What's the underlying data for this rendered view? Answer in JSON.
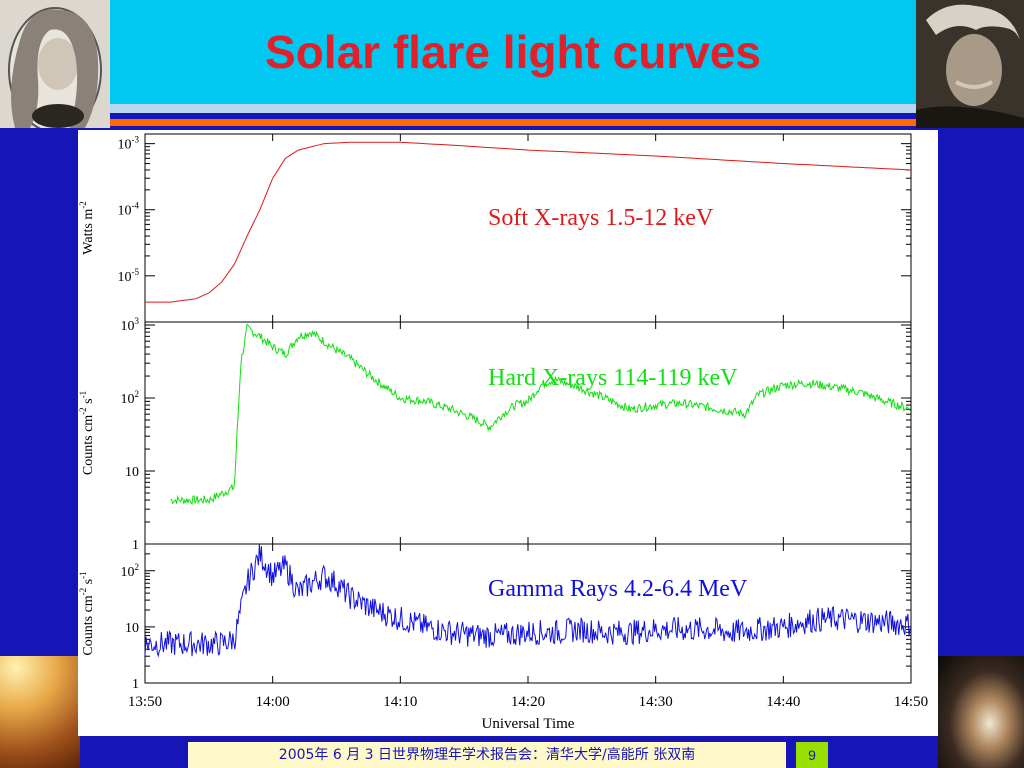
{
  "slide": {
    "title": "Solar flare light curves",
    "footer": "2005年 6 月 3 日世界物理年学术报告会：清华大学/高能所 张双南",
    "page_number": "9"
  },
  "colors": {
    "soft": "#e01818",
    "hard": "#10e010",
    "gamma": "#1010e0",
    "header_bg": "#00c8f0",
    "slide_bg": "#1515b8",
    "title": "#e0202a"
  },
  "chart_data": {
    "type": "line",
    "xlabel": "Universal Time",
    "x_ticks": [
      "13:50",
      "14:00",
      "14:10",
      "14:20",
      "14:30",
      "14:40",
      "14:50"
    ],
    "xlim": [
      "13:50",
      "14:50"
    ],
    "panels": [
      {
        "name": "soft",
        "series_label": "Soft X-rays 1.5-12 keV",
        "ylabel": "Watts m",
        "ylabel_sup": "-2",
        "scale": "log",
        "ylim": [
          2e-06,
          0.0014
        ],
        "y_ticks": [
          {
            "value": 0.001,
            "base": "10",
            "exp": "-3"
          },
          {
            "value": 0.0001,
            "base": "10",
            "exp": "-4"
          },
          {
            "value": 1e-05,
            "base": "10",
            "exp": "-5"
          }
        ],
        "x": [
          "13:50",
          "13:52",
          "13:54",
          "13:55",
          "13:56",
          "13:57",
          "13:58",
          "13:59",
          "14:00",
          "14:01",
          "14:02",
          "14:04",
          "14:06",
          "14:10",
          "14:14",
          "14:20",
          "14:30",
          "14:40",
          "14:50"
        ],
        "values": [
          4e-06,
          4e-06,
          4.5e-06,
          5.5e-06,
          8e-06,
          1.5e-05,
          4e-05,
          0.0001,
          0.0003,
          0.0006,
          0.0008,
          0.001,
          0.00105,
          0.00105,
          0.00095,
          0.0008,
          0.00065,
          0.0005,
          0.0004
        ]
      },
      {
        "name": "hard",
        "series_label": "Hard X-rays 114-119 keV",
        "ylabel": "Counts cm",
        "ylabel_sup": "-2",
        "ylabel_tail": " s",
        "ylabel_sup2": "-1",
        "scale": "log",
        "ylim": [
          1,
          1100
        ],
        "y_ticks": [
          {
            "value": 1000,
            "base": "10",
            "exp": "3"
          },
          {
            "value": 100,
            "base": "10",
            "exp": "2"
          },
          {
            "value": 10,
            "base": "10",
            "exp": ""
          },
          {
            "value": 1,
            "base": "1",
            "exp": ""
          }
        ],
        "x": [
          "13:52",
          "13:55",
          "13:57",
          "13:57.5",
          "13:58",
          "13:59",
          "14:00",
          "14:01",
          "14:02",
          "14:03",
          "14:04",
          "14:05",
          "14:06",
          "14:08",
          "14:10",
          "14:12",
          "14:14",
          "14:16",
          "14:17",
          "14:18",
          "14:19",
          "14:20",
          "14:21",
          "14:22",
          "14:24",
          "14:26",
          "14:28",
          "14:30",
          "14:32",
          "14:34",
          "14:36",
          "14:37",
          "14:38",
          "14:40",
          "14:42",
          "14:44",
          "14:46",
          "14:48",
          "14:50"
        ],
        "values": [
          4,
          4,
          6,
          300,
          900,
          700,
          500,
          400,
          700,
          800,
          600,
          450,
          350,
          180,
          100,
          90,
          70,
          50,
          40,
          60,
          80,
          90,
          150,
          180,
          140,
          100,
          70,
          80,
          85,
          75,
          65,
          60,
          110,
          150,
          160,
          140,
          120,
          90,
          70
        ]
      },
      {
        "name": "gamma",
        "series_label": "Gamma Rays 4.2-6.4 MeV",
        "ylabel": "Counts cm",
        "ylabel_sup": "-2",
        "ylabel_tail": " s",
        "ylabel_sup2": "-1",
        "scale": "log",
        "ylim": [
          1,
          300
        ],
        "y_ticks": [
          {
            "value": 100,
            "base": "10",
            "exp": "2"
          },
          {
            "value": 10,
            "base": "10",
            "exp": ""
          },
          {
            "value": 1,
            "base": "1",
            "exp": ""
          }
        ],
        "x": [
          "13:50",
          "13:52",
          "13:54",
          "13:56",
          "13:57",
          "13:58",
          "13:59",
          "14:00",
          "14:01",
          "14:02",
          "14:03",
          "14:04",
          "14:05",
          "14:06",
          "14:08",
          "14:10",
          "14:12",
          "14:14",
          "14:16",
          "14:18",
          "14:20",
          "14:22",
          "14:24",
          "14:26",
          "14:28",
          "14:30",
          "14:32",
          "14:34",
          "14:36",
          "14:38",
          "14:40",
          "14:42",
          "14:44",
          "14:46",
          "14:48",
          "14:50"
        ],
        "values": [
          5,
          5,
          5,
          5,
          6,
          60,
          200,
          80,
          120,
          40,
          60,
          80,
          60,
          35,
          20,
          14,
          10,
          8,
          7,
          7,
          8,
          8,
          9,
          8,
          8,
          9,
          9,
          9,
          8,
          9,
          10,
          13,
          14,
          13,
          12,
          11
        ]
      }
    ]
  }
}
